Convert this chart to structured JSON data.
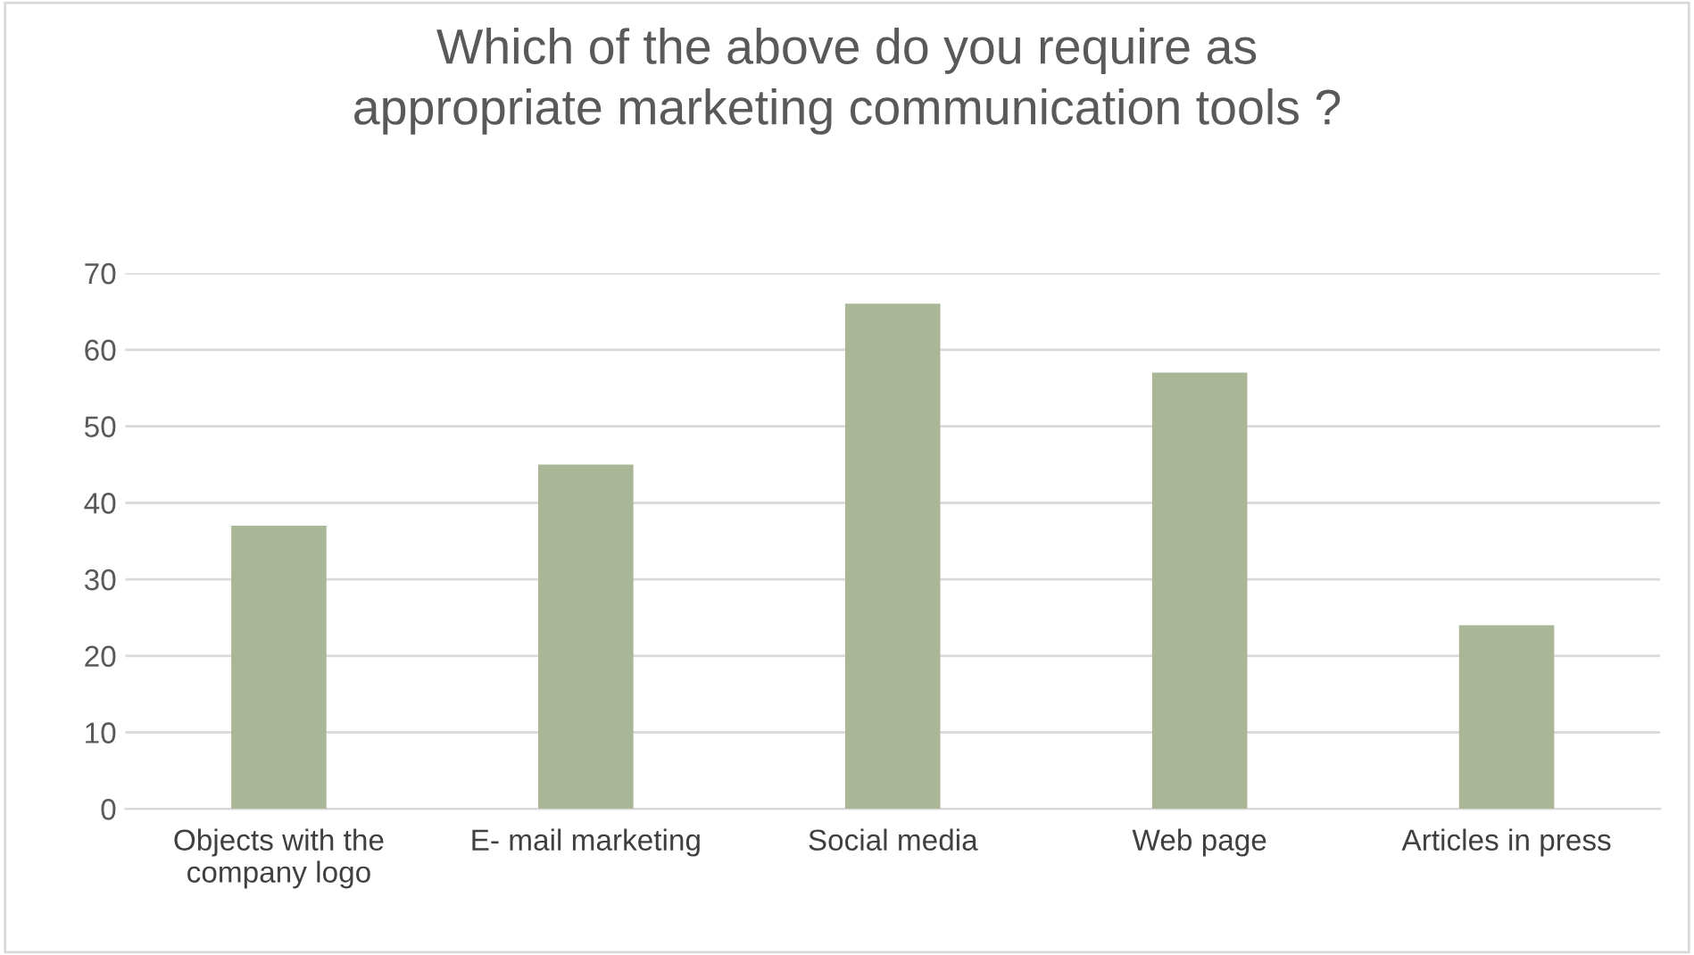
{
  "chart_data": {
    "type": "bar",
    "title": "Which of the above do you require as\nappropriate marketing communication tools ?",
    "categories": [
      "Objects with the\ncompany logo",
      "E- mail marketing",
      "Social media",
      "Web page",
      "Articles in press"
    ],
    "values": [
      37,
      45,
      66,
      57,
      24
    ],
    "color": "#a9b796",
    "ylim": [
      0,
      70
    ],
    "yticks": [
      0,
      10,
      20,
      30,
      40,
      50,
      60,
      70
    ],
    "grid": "y"
  }
}
